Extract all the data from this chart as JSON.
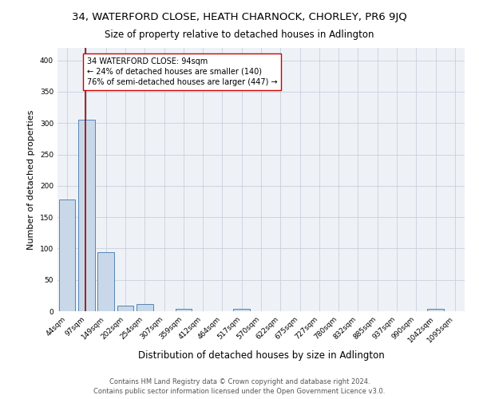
{
  "title": "34, WATERFORD CLOSE, HEATH CHARNOCK, CHORLEY, PR6 9JQ",
  "subtitle": "Size of property relative to detached houses in Adlington",
  "xlabel": "Distribution of detached houses by size in Adlington",
  "ylabel": "Number of detached properties",
  "categories": [
    "44sqm",
    "97sqm",
    "149sqm",
    "202sqm",
    "254sqm",
    "307sqm",
    "359sqm",
    "412sqm",
    "464sqm",
    "517sqm",
    "570sqm",
    "622sqm",
    "675sqm",
    "727sqm",
    "780sqm",
    "832sqm",
    "885sqm",
    "937sqm",
    "990sqm",
    "1042sqm",
    "1095sqm"
  ],
  "values": [
    178,
    305,
    94,
    9,
    11,
    0,
    4,
    0,
    0,
    4,
    0,
    0,
    0,
    0,
    0,
    0,
    0,
    0,
    0,
    4,
    0
  ],
  "bar_color": "#c8d8e8",
  "bar_edge_color": "#5585b5",
  "background_color": "#eef2f7",
  "grid_color": "#c8d0dc",
  "property_line_color": "#990000",
  "annotation_text": "34 WATERFORD CLOSE: 94sqm\n← 24% of detached houses are smaller (140)\n76% of semi-detached houses are larger (447) →",
  "annotation_box_color": "#ffffff",
  "annotation_box_edge": "#cc0000",
  "footer": "Contains HM Land Registry data © Crown copyright and database right 2024.\nContains public sector information licensed under the Open Government Licence v3.0.",
  "ylim": [
    0,
    420
  ],
  "title_fontsize": 9.5,
  "subtitle_fontsize": 8.5,
  "ylabel_fontsize": 8,
  "xlabel_fontsize": 8.5,
  "tick_fontsize": 6.5,
  "annotation_fontsize": 7,
  "footer_fontsize": 6,
  "bar_width": 0.85
}
